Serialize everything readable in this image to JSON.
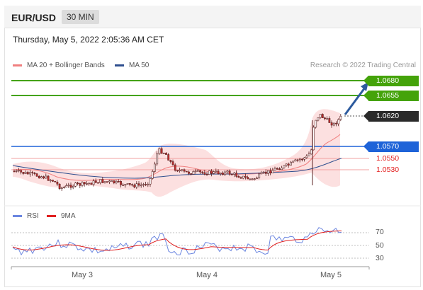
{
  "header": {
    "symbol": "EUR/USD",
    "timeframe": "30 MIN"
  },
  "timestamp": "Thursday, May 5, 2022 2:05:36 AM CET",
  "legend": {
    "ma20": {
      "label": "MA 20 + Bollinger Bands",
      "color": "#f08080"
    },
    "ma50": {
      "label": "MA 50",
      "color": "#2f4f8f"
    },
    "credit": "Research © 2022 Trading Central"
  },
  "levels": [
    {
      "value": "1.0680",
      "kind": "resistance-green"
    },
    {
      "value": "1.0655",
      "kind": "resistance-green"
    },
    {
      "value": "1.0620",
      "kind": "current-price"
    },
    {
      "value": "1.0570",
      "kind": "pivot-blue"
    },
    {
      "value": "1.0550",
      "kind": "support-red"
    },
    {
      "value": "1.0530",
      "kind": "support-red"
    }
  ],
  "rsi_panel": {
    "legend": [
      {
        "label": "RSI",
        "color": "#6b86e0"
      },
      {
        "label": "9MA",
        "color": "#e02020"
      }
    ],
    "ticks": [
      "70",
      "50",
      "30"
    ]
  },
  "x_axis": {
    "ticks": [
      "May 3",
      "May 4",
      "May 5"
    ]
  },
  "colors": {
    "green": "#44a30a",
    "blue": "#1e63d8",
    "red": "#e32020",
    "candle_up": "#ffffff",
    "candle_down": "#c43030",
    "band": "#fbd0d0"
  }
}
